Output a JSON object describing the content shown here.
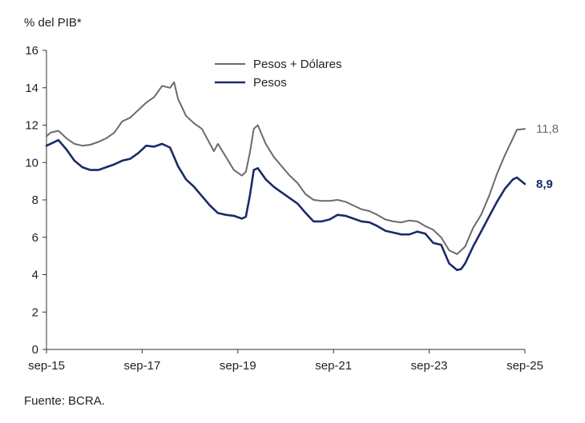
{
  "unit_label": "% del PIB*",
  "source": "Fuente: BCRA.",
  "colors": {
    "pesos_dolares": "#6b6b6b",
    "pesos": "#1a2a6c",
    "axis": "#333333"
  },
  "chart_data": {
    "type": "line",
    "title": "",
    "xlabel": "",
    "ylabel": "% del PIB*",
    "x_range": [
      "2015-09",
      "2025-09"
    ],
    "ylim": [
      0,
      16
    ],
    "yticks": [
      0,
      2,
      4,
      6,
      8,
      10,
      12,
      14,
      16
    ],
    "xtick_labels": [
      "sep-15",
      "sep-17",
      "sep-19",
      "sep-21",
      "sep-23",
      "sep-25"
    ],
    "xtick_dates": [
      "2015-09",
      "2017-09",
      "2019-09",
      "2021-09",
      "2023-09",
      "2025-09"
    ],
    "grid": false,
    "legend_position": "top-center",
    "series": [
      {
        "name": "Pesos + Dólares",
        "color": "#6b6b6b",
        "end_label": "11,8",
        "points": [
          [
            "2015-09",
            11.4
          ],
          [
            "2015-10",
            11.6
          ],
          [
            "2015-12",
            11.7
          ],
          [
            "2016-02",
            11.3
          ],
          [
            "2016-04",
            11.0
          ],
          [
            "2016-06",
            10.9
          ],
          [
            "2016-08",
            10.95
          ],
          [
            "2016-10",
            11.1
          ],
          [
            "2016-12",
            11.3
          ],
          [
            "2017-02",
            11.6
          ],
          [
            "2017-04",
            12.2
          ],
          [
            "2017-06",
            12.4
          ],
          [
            "2017-08",
            12.8
          ],
          [
            "2017-10",
            13.2
          ],
          [
            "2017-12",
            13.5
          ],
          [
            "2018-02",
            14.1
          ],
          [
            "2018-04",
            14.0
          ],
          [
            "2018-05",
            14.3
          ],
          [
            "2018-06",
            13.4
          ],
          [
            "2018-08",
            12.5
          ],
          [
            "2018-10",
            12.1
          ],
          [
            "2018-12",
            11.8
          ],
          [
            "2019-02",
            11.0
          ],
          [
            "2019-03",
            10.6
          ],
          [
            "2019-04",
            11.0
          ],
          [
            "2019-06",
            10.3
          ],
          [
            "2019-08",
            9.6
          ],
          [
            "2019-10",
            9.3
          ],
          [
            "2019-11",
            9.5
          ],
          [
            "2019-12",
            10.5
          ],
          [
            "2020-01",
            11.8
          ],
          [
            "2020-02",
            12.0
          ],
          [
            "2020-04",
            11.0
          ],
          [
            "2020-06",
            10.3
          ],
          [
            "2020-08",
            9.8
          ],
          [
            "2020-10",
            9.3
          ],
          [
            "2020-12",
            8.9
          ],
          [
            "2021-02",
            8.3
          ],
          [
            "2021-04",
            8.0
          ],
          [
            "2021-06",
            7.95
          ],
          [
            "2021-08",
            7.95
          ],
          [
            "2021-10",
            8.0
          ],
          [
            "2021-12",
            7.9
          ],
          [
            "2022-02",
            7.7
          ],
          [
            "2022-04",
            7.5
          ],
          [
            "2022-06",
            7.4
          ],
          [
            "2022-08",
            7.2
          ],
          [
            "2022-10",
            6.95
          ],
          [
            "2022-12",
            6.85
          ],
          [
            "2023-02",
            6.8
          ],
          [
            "2023-04",
            6.9
          ],
          [
            "2023-06",
            6.85
          ],
          [
            "2023-08",
            6.6
          ],
          [
            "2023-10",
            6.4
          ],
          [
            "2023-12",
            6.0
          ],
          [
            "2024-02",
            5.3
          ],
          [
            "2024-04",
            5.1
          ],
          [
            "2024-06",
            5.5
          ],
          [
            "2024-08",
            6.5
          ],
          [
            "2024-10",
            7.2
          ],
          [
            "2024-12",
            8.2
          ],
          [
            "2025-02",
            9.4
          ],
          [
            "2025-04",
            10.4
          ],
          [
            "2025-06",
            11.3
          ],
          [
            "2025-07",
            11.75
          ],
          [
            "2025-09",
            11.8
          ]
        ]
      },
      {
        "name": "Pesos",
        "color": "#1a2a6c",
        "end_label": "8,9",
        "points": [
          [
            "2015-09",
            10.9
          ],
          [
            "2015-10",
            11.0
          ],
          [
            "2015-12",
            11.2
          ],
          [
            "2016-02",
            10.7
          ],
          [
            "2016-04",
            10.1
          ],
          [
            "2016-06",
            9.75
          ],
          [
            "2016-08",
            9.6
          ],
          [
            "2016-10",
            9.6
          ],
          [
            "2016-12",
            9.75
          ],
          [
            "2017-02",
            9.9
          ],
          [
            "2017-04",
            10.1
          ],
          [
            "2017-06",
            10.2
          ],
          [
            "2017-08",
            10.5
          ],
          [
            "2017-10",
            10.9
          ],
          [
            "2017-12",
            10.85
          ],
          [
            "2018-02",
            11.0
          ],
          [
            "2018-04",
            10.8
          ],
          [
            "2018-05",
            10.3
          ],
          [
            "2018-06",
            9.8
          ],
          [
            "2018-08",
            9.1
          ],
          [
            "2018-10",
            8.7
          ],
          [
            "2018-12",
            8.2
          ],
          [
            "2019-02",
            7.7
          ],
          [
            "2019-04",
            7.3
          ],
          [
            "2019-06",
            7.2
          ],
          [
            "2019-08",
            7.15
          ],
          [
            "2019-10",
            7.0
          ],
          [
            "2019-11",
            7.1
          ],
          [
            "2019-12",
            8.2
          ],
          [
            "2020-01",
            9.6
          ],
          [
            "2020-02",
            9.7
          ],
          [
            "2020-04",
            9.1
          ],
          [
            "2020-06",
            8.7
          ],
          [
            "2020-08",
            8.4
          ],
          [
            "2020-10",
            8.1
          ],
          [
            "2020-12",
            7.8
          ],
          [
            "2021-02",
            7.3
          ],
          [
            "2021-04",
            6.85
          ],
          [
            "2021-06",
            6.85
          ],
          [
            "2021-08",
            6.95
          ],
          [
            "2021-10",
            7.2
          ],
          [
            "2021-12",
            7.15
          ],
          [
            "2022-02",
            7.0
          ],
          [
            "2022-04",
            6.85
          ],
          [
            "2022-06",
            6.8
          ],
          [
            "2022-08",
            6.6
          ],
          [
            "2022-10",
            6.35
          ],
          [
            "2022-12",
            6.25
          ],
          [
            "2023-02",
            6.15
          ],
          [
            "2023-04",
            6.15
          ],
          [
            "2023-06",
            6.3
          ],
          [
            "2023-08",
            6.2
          ],
          [
            "2023-10",
            5.7
          ],
          [
            "2023-12",
            5.6
          ],
          [
            "2024-02",
            4.6
          ],
          [
            "2024-04",
            4.25
          ],
          [
            "2024-05",
            4.3
          ],
          [
            "2024-06",
            4.6
          ],
          [
            "2024-08",
            5.5
          ],
          [
            "2024-10",
            6.3
          ],
          [
            "2024-12",
            7.1
          ],
          [
            "2025-02",
            7.9
          ],
          [
            "2025-04",
            8.6
          ],
          [
            "2025-06",
            9.1
          ],
          [
            "2025-07",
            9.2
          ],
          [
            "2025-09",
            8.85
          ]
        ]
      }
    ]
  }
}
